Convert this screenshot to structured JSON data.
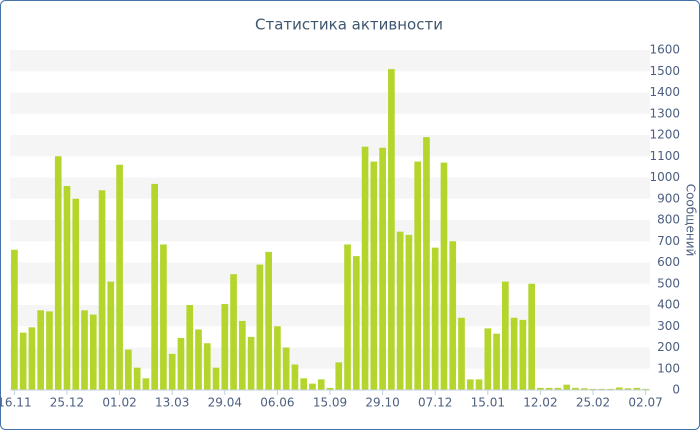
{
  "chart_data": {
    "type": "bar",
    "title": "Статистика активности",
    "y_axis_label": "Сообщений",
    "categories": [
      "16.11",
      null,
      null,
      null,
      null,
      null,
      "25.12",
      null,
      null,
      null,
      null,
      null,
      "01.02",
      null,
      null,
      null,
      null,
      null,
      "13.03",
      null,
      null,
      null,
      null,
      null,
      "29.04",
      null,
      null,
      null,
      null,
      null,
      "06.06",
      null,
      null,
      null,
      null,
      null,
      "15.09",
      null,
      null,
      null,
      null,
      null,
      "29.10",
      null,
      null,
      null,
      null,
      null,
      "07.12",
      null,
      null,
      null,
      null,
      null,
      "15.01",
      null,
      null,
      null,
      null,
      null,
      "12.02",
      null,
      null,
      null,
      null,
      null,
      "25.02",
      null,
      null,
      null,
      null,
      null,
      "02.07"
    ],
    "values": [
      660,
      270,
      295,
      375,
      370,
      1100,
      960,
      900,
      375,
      355,
      940,
      510,
      1060,
      190,
      105,
      55,
      970,
      685,
      170,
      245,
      400,
      285,
      220,
      105,
      405,
      545,
      325,
      250,
      590,
      650,
      300,
      200,
      120,
      55,
      30,
      50,
      10,
      130,
      685,
      630,
      1145,
      1075,
      1140,
      1510,
      745,
      730,
      1075,
      1190,
      670,
      1070,
      700,
      340,
      50,
      50,
      290,
      265,
      510,
      340,
      330,
      500,
      10,
      10,
      10,
      25,
      10,
      8,
      5,
      5,
      5,
      12,
      8,
      10,
      5
    ],
    "color": "#b3d52c",
    "ylim": [
      0,
      1600
    ],
    "yticks": [
      0,
      100,
      200,
      300,
      400,
      500,
      600,
      700,
      800,
      900,
      1000,
      1100,
      1200,
      1300,
      1400,
      1500,
      1600
    ],
    "grid": true
  }
}
